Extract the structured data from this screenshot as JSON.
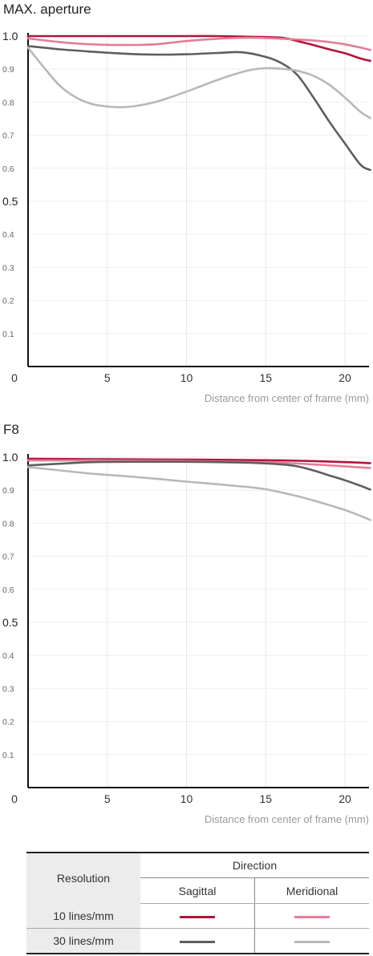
{
  "charts": [
    {
      "title": "MAX. aperture"
    },
    {
      "title": "F8"
    }
  ],
  "chart_data": [
    {
      "type": "line",
      "title": "MAX. aperture",
      "xlabel": "Distance from center of frame (mm)",
      "xlim": [
        0,
        21.6
      ],
      "ylim": [
        0,
        1.0
      ],
      "x_ticks": [
        "0",
        "5",
        "10",
        "15",
        "20"
      ],
      "y_ticks": [
        "0.1",
        "0.2",
        "0.3",
        "0.4",
        "0.5",
        "0.6",
        "0.7",
        "0.8",
        "0.9",
        "1.0"
      ],
      "grid": true,
      "series": [
        {
          "name": "10 lines/mm Sagittal",
          "color": "#b0153c",
          "x": [
            0,
            2,
            4,
            6,
            8,
            10,
            12,
            14,
            16,
            17,
            18,
            19,
            20,
            21,
            21.6
          ],
          "y": [
            1.0,
            1.0,
            1.0,
            1.0,
            1.0,
            1.0,
            1.0,
            0.998,
            0.995,
            0.985,
            0.973,
            0.96,
            0.948,
            0.932,
            0.925
          ]
        },
        {
          "name": "10 lines/mm Meridional",
          "color": "#e37d96",
          "x": [
            0,
            2,
            4,
            6,
            8,
            10,
            12,
            14,
            16,
            18,
            19,
            20,
            21,
            21.6
          ],
          "y": [
            0.993,
            0.982,
            0.975,
            0.973,
            0.975,
            0.985,
            0.992,
            0.995,
            0.992,
            0.987,
            0.982,
            0.975,
            0.965,
            0.958
          ]
        },
        {
          "name": "30 lines/mm Sagittal",
          "color": "#5e5e5e",
          "x": [
            0,
            2,
            4,
            6,
            8,
            10,
            12,
            13.5,
            15,
            16,
            17,
            18,
            19,
            20,
            21,
            21.6
          ],
          "y": [
            0.97,
            0.96,
            0.953,
            0.947,
            0.944,
            0.945,
            0.949,
            0.951,
            0.937,
            0.918,
            0.882,
            0.815,
            0.742,
            0.675,
            0.61,
            0.595
          ]
        },
        {
          "name": "30 lines/mm Meridional",
          "color": "#b8b8b8",
          "x": [
            0,
            1,
            2,
            3,
            4,
            5,
            6,
            7,
            8,
            9,
            10,
            11,
            12,
            13,
            14,
            15,
            16,
            17,
            18,
            19,
            20,
            21,
            21.6
          ],
          "y": [
            0.965,
            0.905,
            0.85,
            0.815,
            0.795,
            0.787,
            0.785,
            0.79,
            0.8,
            0.815,
            0.832,
            0.85,
            0.868,
            0.884,
            0.897,
            0.903,
            0.901,
            0.895,
            0.88,
            0.853,
            0.814,
            0.77,
            0.752
          ]
        }
      ]
    },
    {
      "type": "line",
      "title": "F8",
      "xlabel": "Distance from center of frame (mm)",
      "xlim": [
        0,
        21.6
      ],
      "ylim": [
        0,
        1.0
      ],
      "x_ticks": [
        "0",
        "5",
        "10",
        "15",
        "20"
      ],
      "y_ticks": [
        "0.1",
        "0.2",
        "0.3",
        "0.4",
        "0.5",
        "0.6",
        "0.7",
        "0.8",
        "0.9",
        "1.0"
      ],
      "grid": true,
      "series": [
        {
          "name": "10 lines/mm Sagittal",
          "color": "#b0153c",
          "x": [
            0,
            4,
            8,
            12,
            16,
            18,
            20,
            21.6
          ],
          "y": [
            0.995,
            0.994,
            0.993,
            0.992,
            0.99,
            0.988,
            0.985,
            0.982
          ]
        },
        {
          "name": "10 lines/mm Meridional",
          "color": "#e37d96",
          "x": [
            0,
            4,
            8,
            12,
            16,
            18,
            20,
            21.6
          ],
          "y": [
            0.99,
            0.99,
            0.989,
            0.987,
            0.983,
            0.978,
            0.972,
            0.967
          ]
        },
        {
          "name": "30 lines/mm Sagittal",
          "color": "#5e5e5e",
          "x": [
            0,
            2,
            4,
            6,
            8,
            10,
            12,
            14,
            16,
            17,
            18,
            19,
            20,
            21,
            21.6
          ],
          "y": [
            0.975,
            0.98,
            0.985,
            0.986,
            0.986,
            0.986,
            0.985,
            0.983,
            0.978,
            0.972,
            0.96,
            0.945,
            0.93,
            0.913,
            0.902
          ]
        },
        {
          "name": "30 lines/mm Meridional",
          "color": "#b8b8b8",
          "x": [
            0,
            2,
            4,
            6,
            8,
            10,
            12,
            14,
            15,
            16,
            17,
            18,
            19,
            20,
            21,
            21.6
          ],
          "y": [
            0.97,
            0.96,
            0.95,
            0.943,
            0.935,
            0.926,
            0.918,
            0.909,
            0.903,
            0.893,
            0.882,
            0.869,
            0.855,
            0.84,
            0.822,
            0.81
          ]
        }
      ]
    }
  ],
  "legend": {
    "resolution_header": "Resolution",
    "direction_header": "Direction",
    "sagittal": "Sagittal",
    "meridional": "Meridional",
    "rows": [
      {
        "label": "10 lines/mm",
        "sagittal_color": "#b0153c",
        "meridional_color": "#e37d96"
      },
      {
        "label": "30 lines/mm",
        "sagittal_color": "#5e5e5e",
        "meridional_color": "#b8b8b8"
      }
    ]
  }
}
